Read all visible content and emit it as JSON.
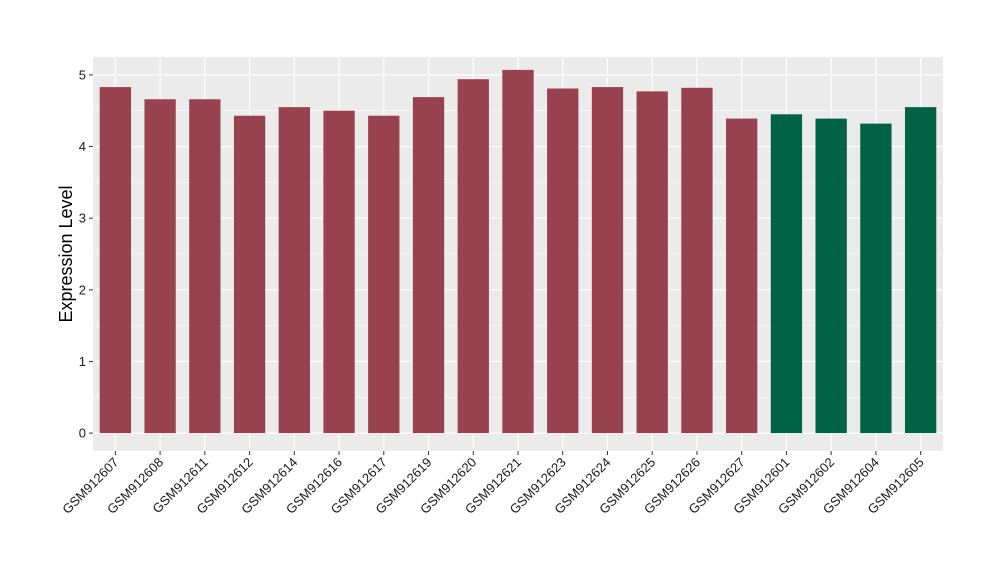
{
  "chart_data": {
    "type": "bar",
    "title": "",
    "xlabel": "",
    "ylabel": "Expression Level",
    "ylim": [
      -0.25,
      5.25
    ],
    "yticks": [
      0,
      1,
      2,
      3,
      4,
      5
    ],
    "grid": true,
    "panel_color": "#EBEBEB",
    "categories": [
      "GSM912607",
      "GSM912608",
      "GSM912611",
      "GSM912612",
      "GSM912614",
      "GSM912616",
      "GSM912617",
      "GSM912619",
      "GSM912620",
      "GSM912621",
      "GSM912623",
      "GSM912624",
      "GSM912625",
      "GSM912626",
      "GSM912627",
      "GSM912601",
      "GSM912602",
      "GSM912604",
      "GSM912605"
    ],
    "values": [
      4.83,
      4.66,
      4.66,
      4.43,
      4.55,
      4.5,
      4.43,
      4.69,
      4.94,
      5.07,
      4.81,
      4.83,
      4.77,
      4.82,
      4.39,
      4.45,
      4.39,
      4.32,
      4.55
    ],
    "bar_colors": [
      "#99424F",
      "#99424F",
      "#99424F",
      "#99424F",
      "#99424F",
      "#99424F",
      "#99424F",
      "#99424F",
      "#99424F",
      "#99424F",
      "#99424F",
      "#99424F",
      "#99424F",
      "#99424F",
      "#99424F",
      "#006345",
      "#006345",
      "#006345",
      "#006345"
    ]
  }
}
